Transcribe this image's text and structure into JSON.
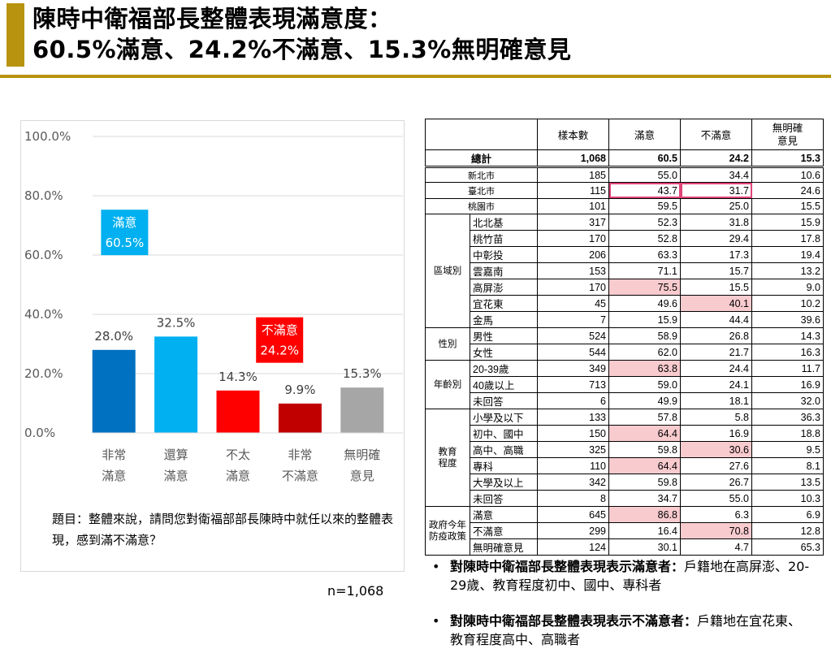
{
  "header": {
    "title_line1": "陳時中衛福部長整體表現滿意度：",
    "title_line2": "60.5%滿意、24.2%不滿意、15.3%無明確意見",
    "accent_color": "#b8930f"
  },
  "chart_data": {
    "type": "bar",
    "categories": [
      [
        "非常",
        "滿意"
      ],
      [
        "還算",
        "滿意"
      ],
      [
        "不太",
        "滿意"
      ],
      [
        "非常",
        "不滿意"
      ],
      [
        "無明確",
        "意見"
      ]
    ],
    "values": [
      28.0,
      32.5,
      14.3,
      9.9,
      15.3
    ],
    "value_labels": [
      "28.0%",
      "32.5%",
      "14.3%",
      "9.9%",
      "15.3%"
    ],
    "colors": [
      "#0070c0",
      "#00b0f0",
      "#ff0000",
      "#c00000",
      "#a6a6a6"
    ],
    "ylim": [
      0,
      100
    ],
    "yticks": [
      "0.0%",
      "20.0%",
      "40.0%",
      "60.0%",
      "80.0%",
      "100.0%"
    ],
    "yticks_values": [
      0,
      20,
      40,
      60,
      80,
      100
    ],
    "grid": true,
    "annotations": [
      {
        "text1": "滿意",
        "text2": "60.5%",
        "color": "#00b0f0",
        "over": [
          0,
          1
        ]
      },
      {
        "text1": "不滿意",
        "text2": "24.2%",
        "color": "#ff0000",
        "over": [
          2,
          3
        ]
      }
    ]
  },
  "question": "題目：整體來說，請問您對衛福部部長陳時中就任以來的整體表現，感到滿不滿意？",
  "sample_note": "n=1,068",
  "table": {
    "headers": [
      "樣本數",
      "滿意",
      "不滿意",
      "無明確\n意見"
    ],
    "total": {
      "label": "總計",
      "values": [
        "1,068",
        "60.5",
        "24.2",
        "15.3"
      ]
    },
    "cities": [
      {
        "label": "新北市",
        "values": [
          "185",
          "55.0",
          "34.4",
          "10.6"
        ]
      },
      {
        "label": "臺北市",
        "values": [
          "115",
          "43.7",
          "31.7",
          "24.6"
        ]
      },
      {
        "label": "桃園市",
        "values": [
          "101",
          "59.5",
          "25.0",
          "15.5"
        ]
      }
    ],
    "groups": [
      {
        "label": "區域別",
        "rows": [
          {
            "label": "北北基",
            "values": [
              "317",
              "52.3",
              "31.8",
              "15.9"
            ]
          },
          {
            "label": "桃竹苗",
            "values": [
              "170",
              "52.8",
              "29.4",
              "17.8"
            ]
          },
          {
            "label": "中彰投",
            "values": [
              "206",
              "63.3",
              "17.3",
              "19.4"
            ]
          },
          {
            "label": "雲嘉南",
            "values": [
              "153",
              "71.1",
              "15.7",
              "13.2"
            ]
          },
          {
            "label": "高屏澎",
            "values": [
              "170",
              "75.5",
              "15.5",
              "9.0"
            ]
          },
          {
            "label": "宜花東",
            "values": [
              "45",
              "49.6",
              "40.1",
              "10.2"
            ]
          },
          {
            "label": "金馬",
            "values": [
              "7",
              "15.9",
              "44.4",
              "39.6"
            ]
          }
        ]
      },
      {
        "label": "性別",
        "rows": [
          {
            "label": "男性",
            "values": [
              "524",
              "58.9",
              "26.8",
              "14.3"
            ]
          },
          {
            "label": "女性",
            "values": [
              "544",
              "62.0",
              "21.7",
              "16.3"
            ]
          }
        ]
      },
      {
        "label": "年齡別",
        "rows": [
          {
            "label": "20-39歲",
            "values": [
              "349",
              "63.8",
              "24.4",
              "11.7"
            ]
          },
          {
            "label": "40歲以上",
            "values": [
              "713",
              "59.0",
              "24.1",
              "16.9"
            ]
          },
          {
            "label": "未回答",
            "values": [
              "6",
              "49.9",
              "18.1",
              "32.0"
            ]
          }
        ]
      },
      {
        "label": "教育\n程度",
        "rows": [
          {
            "label": "小學及以下",
            "values": [
              "133",
              "57.8",
              "5.8",
              "36.3"
            ]
          },
          {
            "label": "初中、國中",
            "values": [
              "150",
              "64.4",
              "16.9",
              "18.8"
            ]
          },
          {
            "label": "高中、高職",
            "values": [
              "325",
              "59.8",
              "30.6",
              "9.5"
            ]
          },
          {
            "label": "專科",
            "values": [
              "110",
              "64.4",
              "27.6",
              "8.1"
            ]
          },
          {
            "label": "大學及以上",
            "values": [
              "342",
              "59.8",
              "26.7",
              "13.5"
            ]
          },
          {
            "label": "未回答",
            "values": [
              "8",
              "34.7",
              "55.0",
              "10.3"
            ]
          }
        ]
      },
      {
        "label": "政府今年\n防疫政策",
        "rows": [
          {
            "label": "滿意",
            "values": [
              "645",
              "86.8",
              "6.3",
              "6.9"
            ]
          },
          {
            "label": "不滿意",
            "values": [
              "299",
              "16.4",
              "70.8",
              "12.8"
            ]
          },
          {
            "label": "無明確意見",
            "values": [
              "124",
              "30.1",
              "4.7",
              "65.3"
            ]
          }
        ]
      }
    ],
    "highlight_color": "#f8cbcf"
  },
  "notes": [
    {
      "bullet": "•",
      "bold": "對陳時中衛福部長整體表現表示滿意者：",
      "text": "戶籍地在高屏澎、20-29歲、教育程度初中、國中、專科者"
    },
    {
      "bullet": "•",
      "bold": "對陳時中衛福部長整體表現表示不滿意者：",
      "text": "戶籍地在宜花東、教育程度高中、高職者"
    }
  ]
}
